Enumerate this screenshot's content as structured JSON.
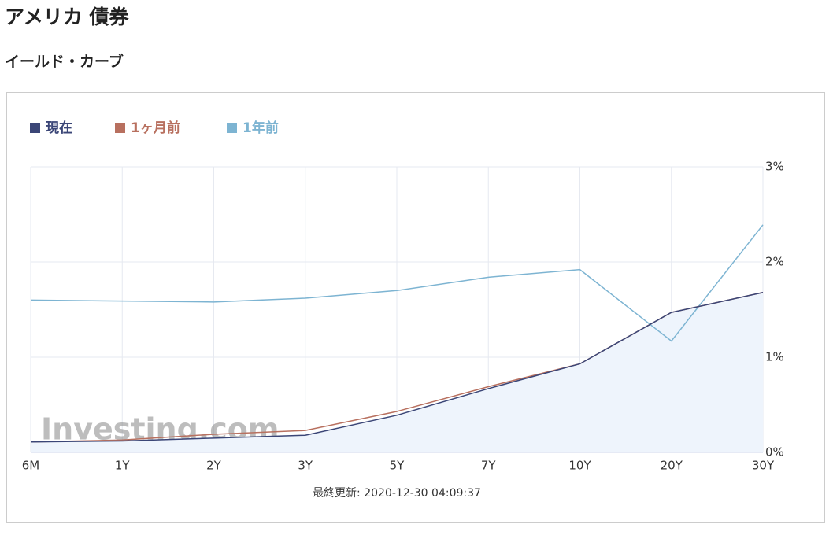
{
  "page_title": "アメリカ 債券",
  "section_title": "イールド・カーブ",
  "chart_data": {
    "type": "line",
    "categories": [
      "6M",
      "1Y",
      "2Y",
      "3Y",
      "5Y",
      "7Y",
      "10Y",
      "20Y",
      "30Y"
    ],
    "series": [
      {
        "name": "現在",
        "color": "#3b4677",
        "area": true,
        "values": [
          0.11,
          0.12,
          0.15,
          0.18,
          0.39,
          0.67,
          0.93,
          1.47,
          1.68
        ]
      },
      {
        "name": "1ヶ月前",
        "color": "#b8705f",
        "values": [
          0.11,
          0.13,
          0.19,
          0.23,
          0.43,
          0.69,
          0.93,
          1.47,
          1.68
        ]
      },
      {
        "name": "1年前",
        "color": "#7db4d2",
        "values": [
          1.6,
          1.59,
          1.58,
          1.62,
          1.7,
          1.84,
          1.92,
          1.17,
          2.39
        ]
      }
    ],
    "ylim": [
      0,
      3
    ],
    "yticks": [
      {
        "value": 0,
        "label": "0%"
      },
      {
        "value": 1,
        "label": "1%"
      },
      {
        "value": 2,
        "label": "2%"
      },
      {
        "value": 3,
        "label": "3%"
      }
    ],
    "grid": true,
    "legend": "top-left",
    "watermark": "Investing.com",
    "footer": "最終更新: 2020-12-30 04:09:37"
  }
}
